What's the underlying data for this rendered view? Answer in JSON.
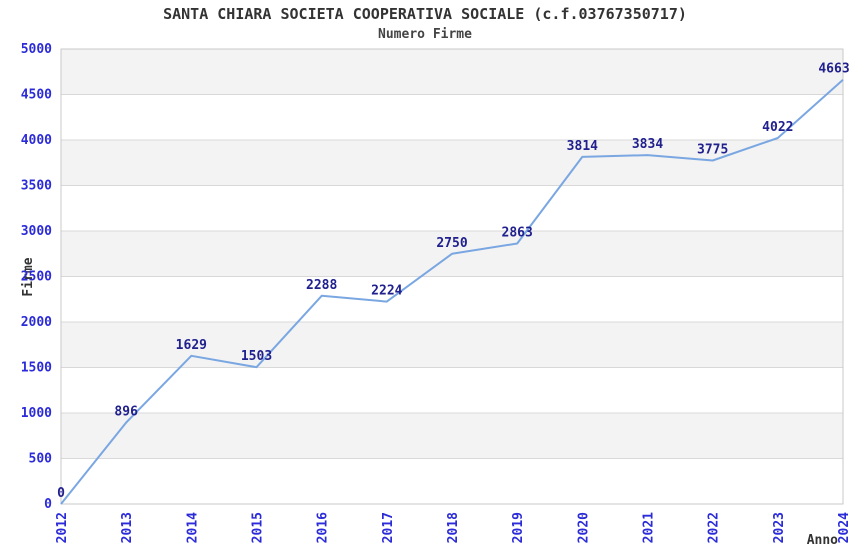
{
  "header": {
    "title": "SANTA CHIARA SOCIETA COOPERATIVA SOCIALE (c.f.03767350717)",
    "subtitle": "Numero Firme"
  },
  "chart_data": {
    "type": "line",
    "title": "SANTA CHIARA SOCIETA COOPERATIVA SOCIALE (c.f.03767350717)",
    "subtitle": "Numero Firme",
    "xlabel": "Anno",
    "ylabel": "Firme",
    "categories": [
      "2012",
      "2013",
      "2014",
      "2015",
      "2016",
      "2017",
      "2018",
      "2019",
      "2020",
      "2021",
      "2022",
      "2023",
      "2024"
    ],
    "series": [
      {
        "name": "Numero Firme",
        "values": [
          0,
          896,
          1629,
          1503,
          2288,
          2224,
          2750,
          2863,
          3814,
          3834,
          3775,
          4022,
          4663
        ]
      }
    ],
    "data_labels_visible": true,
    "ylim": [
      0,
      5000
    ],
    "ytick_step": 500,
    "yticks": [
      0,
      500,
      1000,
      1500,
      2000,
      2500,
      3000,
      3500,
      4000,
      4500,
      5000
    ],
    "grid": true,
    "legend": false,
    "band_fill_pattern": "alternating horizontal bands, gray on 500-1000, 1500-2000, 2500-3000, 3500-4000, 4500-5000",
    "colors": {
      "line": "#7aa7e2",
      "data_label": "#20208f",
      "tick_label": "#2b2bd9",
      "axis_title": "#333333",
      "band": "#f3f3f3",
      "gridline": "#d8d8d8",
      "border": "#c9c9c9",
      "background": "#ffffff"
    }
  }
}
